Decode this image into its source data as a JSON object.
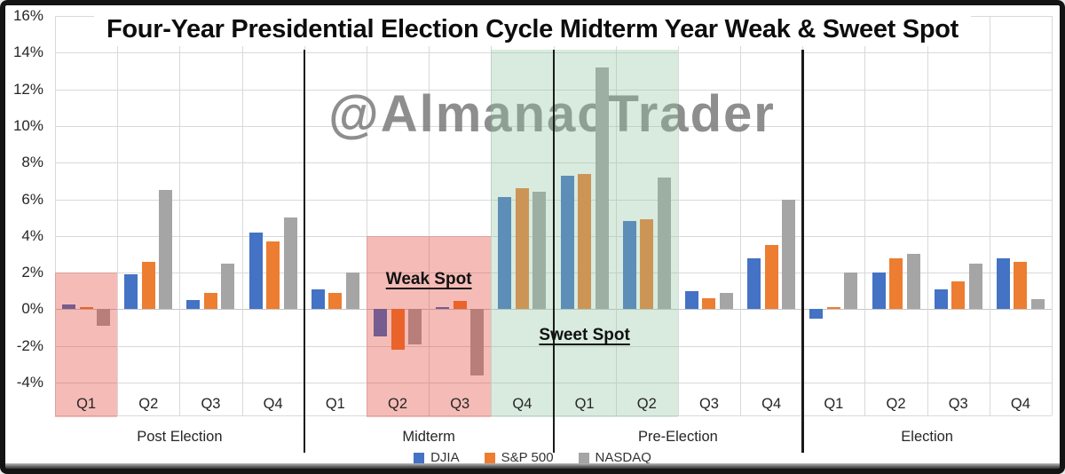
{
  "title": "Four-Year Presidential Election Cycle Midterm Year Weak & Sweet Spot",
  "watermark": "@AlmanacTrader",
  "legend": {
    "items": [
      {
        "name": "DJIA",
        "color": "#4472c4"
      },
      {
        "name": "S&P 500",
        "color": "#ed7d31"
      },
      {
        "name": "NASDAQ",
        "color": "#a5a5a5"
      }
    ]
  },
  "y_axis": {
    "tick_labels": [
      "16%",
      "14%",
      "12%",
      "10%",
      "8%",
      "6%",
      "4%",
      "2%",
      "0%",
      "-2%",
      "-4%"
    ],
    "max": 16,
    "min": -4,
    "step": 2
  },
  "chart_data": {
    "type": "bar",
    "title": "Four-Year Presidential Election Cycle Midterm Year Weak & Sweet Spot",
    "categories": [
      "Q1",
      "Q2",
      "Q3",
      "Q4",
      "Q1",
      "Q2",
      "Q3",
      "Q4",
      "Q1",
      "Q2",
      "Q3",
      "Q4",
      "Q1",
      "Q2",
      "Q3",
      "Q4"
    ],
    "sections": [
      {
        "label": "Post Election"
      },
      {
        "label": "Midterm"
      },
      {
        "label": "Pre-Election"
      },
      {
        "label": "Election"
      }
    ],
    "series": [
      {
        "name": "DJIA",
        "color": "#4472c4",
        "values": [
          0.25,
          1.9,
          0.5,
          4.2,
          1.1,
          -1.5,
          0.1,
          6.1,
          7.3,
          4.8,
          1.0,
          2.8,
          -0.5,
          2.0,
          1.1,
          2.8
        ]
      },
      {
        "name": "S&P 500",
        "color": "#ed7d31",
        "values": [
          0.1,
          2.6,
          0.9,
          3.7,
          0.9,
          -2.2,
          0.45,
          6.6,
          7.4,
          4.9,
          0.6,
          3.5,
          0.1,
          2.8,
          1.5,
          2.6
        ]
      },
      {
        "name": "NASDAQ",
        "color": "#a5a5a5",
        "values": [
          -0.9,
          6.5,
          2.5,
          5.0,
          2.0,
          -1.9,
          -3.6,
          6.4,
          13.2,
          7.2,
          0.9,
          6.0,
          2.0,
          3.0,
          2.5,
          0.55
        ]
      }
    ],
    "ylim": [
      -4,
      16
    ],
    "grid": true,
    "legend_position": "bottom",
    "highlight_regions": [
      {
        "id": "post-election-q1-weak",
        "color": "red",
        "from_quarter": 0,
        "to_quarter": 1,
        "top_percent": 2,
        "label": ""
      },
      {
        "id": "midterm-weak-spot",
        "color": "red",
        "from_quarter": 5,
        "to_quarter": 7,
        "top_percent": 4,
        "label": "Weak Spot",
        "label_percent": 1.55
      },
      {
        "id": "sweet-spot",
        "color": "green",
        "from_quarter": 7,
        "to_quarter": 10,
        "top_percent": 14.15,
        "label": "Sweet Spot",
        "label_percent": -1.5
      }
    ]
  }
}
